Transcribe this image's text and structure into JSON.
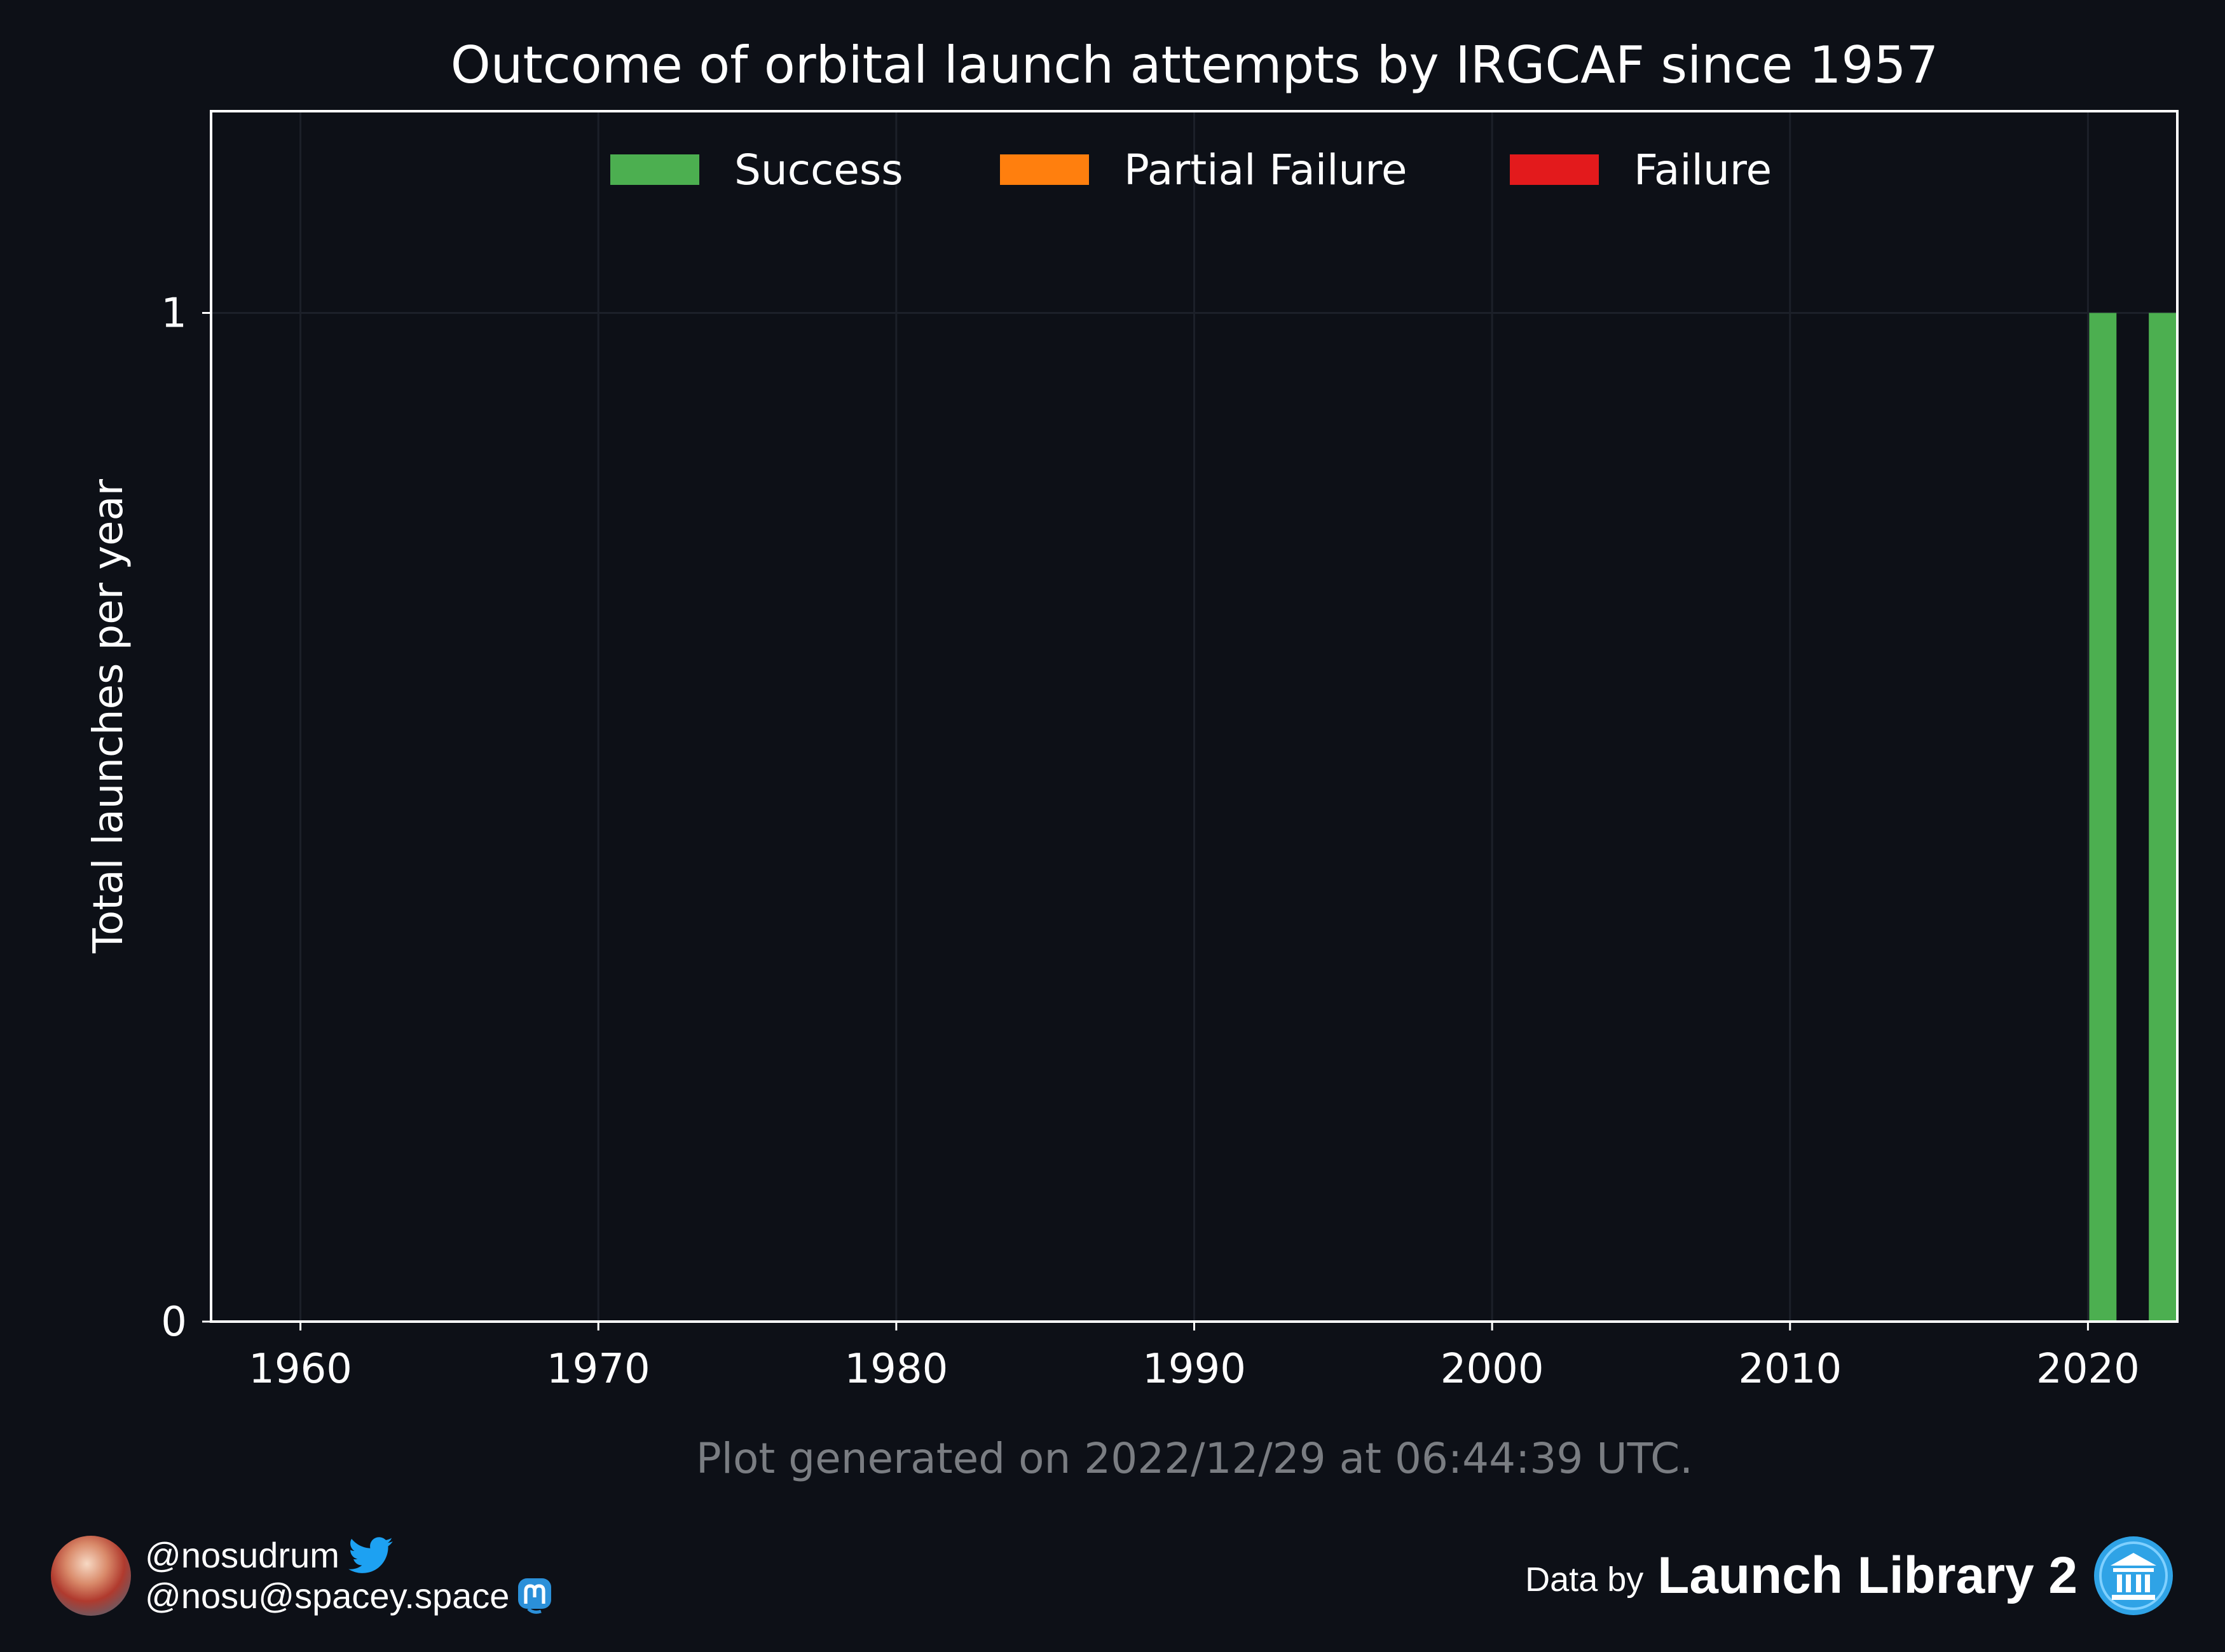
{
  "colors": {
    "background": "#0d1017",
    "success": "#4caf50",
    "partial_failure": "#ff7f0e",
    "failure": "#e31a1c",
    "footnote": "#7a7d82",
    "twitter": "#1da1f2",
    "mastodon": "#2b90d9"
  },
  "chart_data": {
    "type": "bar",
    "stacked": true,
    "title": "Outcome of orbital launch attempts by IRGCAF since 1957",
    "xlabel": "",
    "ylabel": "Total launches per year",
    "xlim": [
      1957,
      2023
    ],
    "ylim": [
      0,
      1.2
    ],
    "xticks": [
      "1960",
      "1970",
      "1980",
      "1990",
      "2000",
      "2010",
      "2020"
    ],
    "yticks": [
      "0",
      "1"
    ],
    "grid": true,
    "legend_position": "top-center",
    "series": [
      {
        "name": "Success",
        "color": "#4caf50",
        "points": [
          {
            "x": 2020,
            "y": 1
          },
          {
            "x": 2022,
            "y": 1
          }
        ]
      },
      {
        "name": "Partial Failure",
        "color": "#ff7f0e",
        "points": []
      },
      {
        "name": "Failure",
        "color": "#e31a1c",
        "points": []
      }
    ]
  },
  "footnote": "Plot generated on 2022/12/29 at 06:44:39 UTC.",
  "credits": {
    "twitter_handle": "@nosudrum",
    "mastodon_handle": "@nosu@spacey.space",
    "avatar_icon": "astronaut-avatar",
    "twitter_icon": "twitter-bird-icon",
    "mastodon_icon": "mastodon-icon"
  },
  "attribution": {
    "prefix": "Data by",
    "brand": "Launch Library 2",
    "logo_icon": "launch-library-logo-icon"
  }
}
